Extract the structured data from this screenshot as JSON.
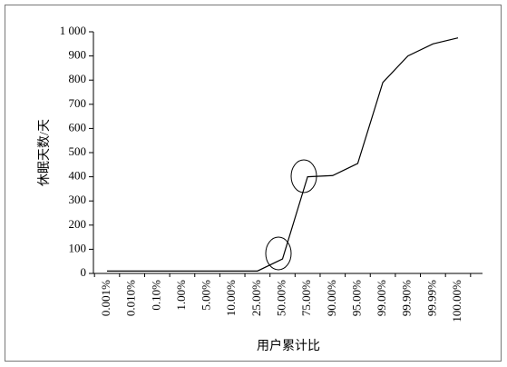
{
  "chart_data": {
    "type": "line",
    "x_label": "用户累计比",
    "y_label": "休眠天数/天",
    "categories": [
      "0.001%",
      "0.010%",
      "0.10%",
      "1.00%",
      "5.00%",
      "10.00%",
      "25.00%",
      "50.00%",
      "75.00%",
      "90.00%",
      "95.00%",
      "99.00%",
      "99.90%",
      "99.99%",
      "100.00%"
    ],
    "values": [
      10,
      10,
      10,
      10,
      10,
      10,
      10,
      60,
      400,
      405,
      455,
      790,
      900,
      950,
      975
    ],
    "color": "#000000",
    "ylim": [
      0,
      1000
    ],
    "yticks": [
      0,
      100,
      200,
      300,
      400,
      500,
      600,
      700,
      800,
      900,
      {
        "value": 1000,
        "label": "1 000"
      }
    ]
  }
}
